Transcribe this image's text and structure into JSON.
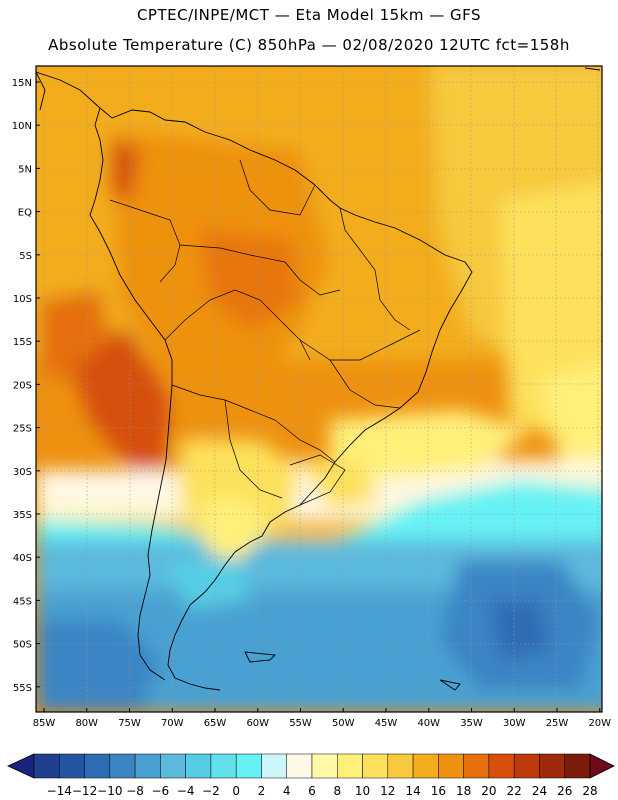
{
  "header": {
    "line1": "CPTEC/INPE/MCT —  Eta Model 15km — GFS",
    "line2": "Absolute Temperature (C) 850hPa — 02/08/2020 12UTC fct=158h"
  },
  "axes": {
    "lat_labels": [
      "15N",
      "10N",
      "5N",
      "EQ",
      "5S",
      "10S",
      "15S",
      "20S",
      "25S",
      "30S",
      "35S",
      "40S",
      "45S",
      "50S",
      "55S"
    ],
    "lon_labels": [
      "85W",
      "80W",
      "75W",
      "70W",
      "65W",
      "60W",
      "55W",
      "50W",
      "45W",
      "40W",
      "35W",
      "30W",
      "25W",
      "20W"
    ]
  },
  "colorbar": {
    "labels": [
      "-14",
      "-12",
      "-10",
      "-8",
      "-6",
      "-4",
      "-2",
      "0",
      "2",
      "4",
      "6",
      "8",
      "10",
      "12",
      "14",
      "16",
      "18",
      "20",
      "22",
      "24",
      "26",
      "28"
    ],
    "colors": [
      "#1f3f8f",
      "#2554a3",
      "#2e6cb4",
      "#3b85c4",
      "#4aa0d2",
      "#5bb9de",
      "#56cde4",
      "#62e0ec",
      "#66f2f4",
      "#cdf6fa",
      "#fff8e6",
      "#fffaa8",
      "#fff07a",
      "#fde15c",
      "#f7c93e",
      "#f3ad1c",
      "#ee9110",
      "#e56f0c",
      "#d6500c",
      "#bf3a0b",
      "#9e2a0b",
      "#7a1b0b"
    ],
    "low_arrow": "#1a237e",
    "high_arrow": "#6e0a1a"
  },
  "map_colors": {
    "frame": "#000000",
    "border": "#000000",
    "grid": "#9a9a9a"
  }
}
